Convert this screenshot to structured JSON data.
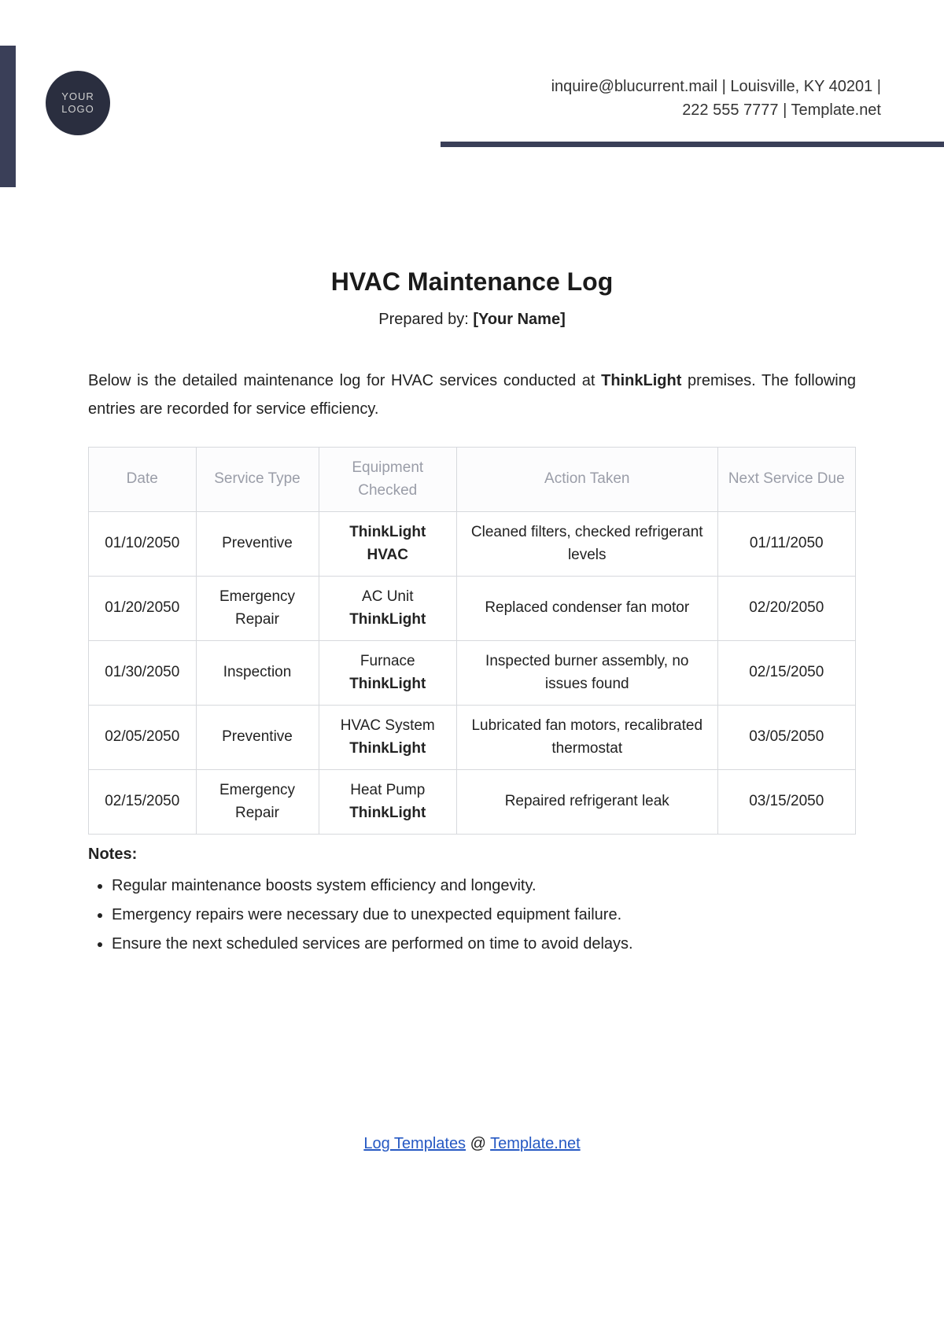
{
  "logo": {
    "line1": "YOUR",
    "line2": "LOGO",
    "bg_color": "#2a2e3f",
    "text_color": "#d0d0d0"
  },
  "accent_color": "#3a3f58",
  "header": {
    "line1": "inquire@blucurrent.mail | Louisville, KY 40201 |",
    "line2": "222 555 7777 | Template.net"
  },
  "title": "HVAC Maintenance Log",
  "prepared": {
    "label": "Prepared by: ",
    "value": "[Your Name]"
  },
  "intro": {
    "before": "Below is the detailed maintenance log for HVAC services conducted at ",
    "bold": "ThinkLight",
    "after": " premises. The following entries are recorded for service efficiency."
  },
  "table": {
    "columns": [
      "Date",
      "Service Type",
      "Equipment Checked",
      "Action Taken",
      "Next Service Due"
    ],
    "header_bg": "#fcfcfd",
    "header_color": "#9a9da8",
    "border_color": "#d7d9dd",
    "rows": [
      {
        "date": "01/10/2050",
        "type": "Preventive",
        "equip_pre": "",
        "equip_bold": "ThinkLight HVAC",
        "action": "Cleaned filters, checked refrigerant levels",
        "next": "01/11/2050"
      },
      {
        "date": "01/20/2050",
        "type": "Emergency Repair",
        "equip_pre": "AC Unit ",
        "equip_bold": "ThinkLight",
        "action": "Replaced condenser fan motor",
        "next": "02/20/2050"
      },
      {
        "date": "01/30/2050",
        "type": "Inspection",
        "equip_pre": "Furnace ",
        "equip_bold": "ThinkLight",
        "action": "Inspected burner assembly, no issues found",
        "next": "02/15/2050"
      },
      {
        "date": "02/05/2050",
        "type": "Preventive",
        "equip_pre": "HVAC System ",
        "equip_bold": "ThinkLight",
        "action": "Lubricated fan motors, recalibrated thermostat",
        "next": "03/05/2050"
      },
      {
        "date": "02/15/2050",
        "type": "Emergency Repair",
        "equip_pre": "Heat Pump ",
        "equip_bold": "ThinkLight",
        "action": "Repaired refrigerant leak",
        "next": "03/15/2050"
      }
    ]
  },
  "notes": {
    "title": "Notes:",
    "items": [
      "Regular maintenance boosts system efficiency and longevity.",
      "Emergency repairs were necessary due to unexpected equipment failure.",
      "Ensure the next scheduled services are performed on time to avoid delays."
    ]
  },
  "footer": {
    "link1_text": "Log Templates",
    "middle": " @ ",
    "link2_text": "Template.net",
    "link_color": "#2659c3"
  }
}
